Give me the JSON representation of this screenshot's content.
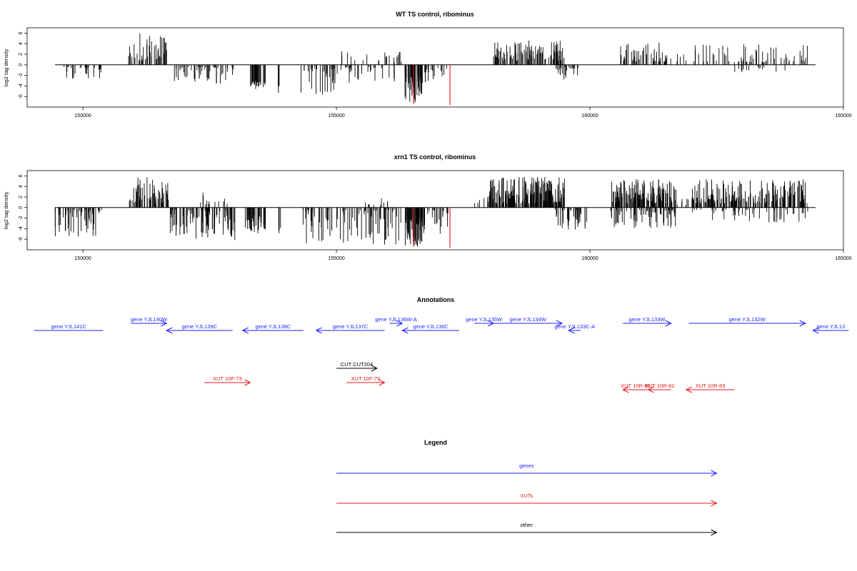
{
  "colors": {
    "axis": "#000000",
    "bar": "#000000",
    "highlight": "#e31a1c",
    "gene": "#1f1fff",
    "xut": "#e31a1c",
    "other": "#000000"
  },
  "chart_data": [
    {
      "type": "bar",
      "title": "WT TS control, ribominus",
      "xlabel": "",
      "ylabel": "log2 tag density",
      "xlim": [
        148900,
        165000
      ],
      "ylim": [
        -8,
        7
      ],
      "xticks": [
        150000,
        155000,
        160000,
        165000
      ],
      "yticks": [
        6,
        4,
        2,
        0,
        -2,
        -4,
        -6
      ],
      "baseline": [
        149450,
        164450
      ],
      "highlight": [
        {
          "x": 156520,
          "y": -7.4
        },
        {
          "x": 157240,
          "y": -7.6
        }
      ],
      "regions": [
        {
          "start": 149600,
          "end": 150400,
          "density": 0.5,
          "min": -2.6,
          "max": -0.4
        },
        {
          "start": 150900,
          "end": 151700,
          "density": 0.8,
          "min": 0.8,
          "max": 6.0
        },
        {
          "start": 151800,
          "end": 153000,
          "density": 0.6,
          "min": -3.6,
          "max": -0.4
        },
        {
          "start": 153300,
          "end": 153600,
          "density": 1.5,
          "min": -4.6,
          "max": -3.0
        },
        {
          "start": 153850,
          "end": 153900,
          "density": 1.0,
          "min": -5.4,
          "max": -3.6
        },
        {
          "start": 154300,
          "end": 155000,
          "density": 0.6,
          "min": -5.8,
          "max": -0.4
        },
        {
          "start": 155100,
          "end": 156300,
          "density": 0.25,
          "min": 0.5,
          "max": 2.6
        },
        {
          "start": 155000,
          "end": 156300,
          "density": 0.3,
          "min": -3.5,
          "max": -0.4
        },
        {
          "start": 156350,
          "end": 156700,
          "density": 2.0,
          "min": -7.2,
          "max": -2.0
        },
        {
          "start": 156700,
          "end": 157200,
          "density": 0.5,
          "min": -4.0,
          "max": -0.4
        },
        {
          "start": 158100,
          "end": 159500,
          "density": 1.0,
          "min": 0.8,
          "max": 4.6
        },
        {
          "start": 159300,
          "end": 159850,
          "density": 0.6,
          "min": -2.8,
          "max": -0.4
        },
        {
          "start": 160600,
          "end": 161500,
          "density": 0.8,
          "min": 0.6,
          "max": 4.2
        },
        {
          "start": 161500,
          "end": 162000,
          "density": 0.25,
          "min": 0.5,
          "max": 2.0
        },
        {
          "start": 162000,
          "end": 164300,
          "density": 0.4,
          "min": 0.5,
          "max": 4.0
        },
        {
          "start": 162200,
          "end": 164300,
          "density": 0.1,
          "min": -1.6,
          "max": -0.4
        }
      ]
    },
    {
      "type": "bar",
      "title": "xrn1 TS control, ribominus",
      "xlabel": "",
      "ylabel": "log2 tag density",
      "xlim": [
        148900,
        165000
      ],
      "ylim": [
        -8,
        7
      ],
      "xticks": [
        150000,
        155000,
        160000,
        165000
      ],
      "yticks": [
        6,
        4,
        2,
        0,
        -2,
        -4,
        -6
      ],
      "baseline": [
        149450,
        164450
      ],
      "highlight": [
        {
          "x": 156520,
          "y": -7.4
        },
        {
          "x": 157240,
          "y": -7.6
        }
      ],
      "regions": [
        {
          "start": 149450,
          "end": 150400,
          "density": 0.8,
          "min": -5.6,
          "max": -0.4
        },
        {
          "start": 150900,
          "end": 151700,
          "density": 1.0,
          "min": 0.8,
          "max": 5.8
        },
        {
          "start": 151700,
          "end": 153000,
          "density": 1.0,
          "min": -6.2,
          "max": -0.4
        },
        {
          "start": 152300,
          "end": 152900,
          "density": 0.3,
          "min": 0.5,
          "max": 3.0
        },
        {
          "start": 153200,
          "end": 153600,
          "density": 1.5,
          "min": -5.0,
          "max": -1.5
        },
        {
          "start": 153850,
          "end": 153900,
          "density": 1.0,
          "min": -6.8,
          "max": -3.6
        },
        {
          "start": 154300,
          "end": 156300,
          "density": 0.6,
          "min": -7.0,
          "max": -0.4
        },
        {
          "start": 155500,
          "end": 156200,
          "density": 0.2,
          "min": 0.5,
          "max": 2.0
        },
        {
          "start": 156350,
          "end": 156750,
          "density": 2.0,
          "min": -7.4,
          "max": -2.0
        },
        {
          "start": 156750,
          "end": 157200,
          "density": 0.6,
          "min": -5.0,
          "max": -0.4
        },
        {
          "start": 157600,
          "end": 158000,
          "density": 0.2,
          "min": 0.6,
          "max": 2.4
        },
        {
          "start": 158000,
          "end": 159500,
          "density": 2.0,
          "min": 0.8,
          "max": 5.8
        },
        {
          "start": 159300,
          "end": 159950,
          "density": 0.8,
          "min": -4.2,
          "max": -0.4
        },
        {
          "start": 160400,
          "end": 161700,
          "density": 1.6,
          "min": 0.8,
          "max": 5.4
        },
        {
          "start": 160400,
          "end": 161700,
          "density": 0.8,
          "min": -4.0,
          "max": -0.4
        },
        {
          "start": 161700,
          "end": 162000,
          "density": 0.3,
          "min": 0.5,
          "max": 2.5
        },
        {
          "start": 162000,
          "end": 164300,
          "density": 1.2,
          "min": 0.8,
          "max": 5.4
        },
        {
          "start": 162000,
          "end": 164300,
          "density": 0.3,
          "min": -3.0,
          "max": -0.4
        }
      ]
    }
  ],
  "annotations": {
    "title": "Annotations",
    "items": [
      {
        "label": "gene YJL141C",
        "start": 149040,
        "end": 150400,
        "dir": "none",
        "cat": "gene",
        "row": 1
      },
      {
        "label": "gene YJL140W",
        "start": 150950,
        "end": 151650,
        "dir": "right",
        "cat": "gene",
        "row": 0
      },
      {
        "label": "gene YJL139C",
        "start": 151650,
        "end": 152950,
        "dir": "left",
        "cat": "gene",
        "row": 1
      },
      {
        "label": "gene YJL138C",
        "start": 153150,
        "end": 154350,
        "dir": "left",
        "cat": "gene",
        "row": 1
      },
      {
        "label": "gene YJL137C",
        "start": 154600,
        "end": 155950,
        "dir": "left",
        "cat": "gene",
        "row": 1
      },
      {
        "label": "gene YJL136W-A",
        "start": 156050,
        "end": 156300,
        "dir": "right",
        "cat": "gene",
        "row": 0
      },
      {
        "label": "gene YJL136C",
        "start": 156300,
        "end": 157420,
        "dir": "left",
        "cat": "gene",
        "row": 1
      },
      {
        "label": "gene YJL135W",
        "start": 157720,
        "end": 158100,
        "dir": "right",
        "cat": "gene",
        "row": 0
      },
      {
        "label": "gene YJL134W",
        "start": 158100,
        "end": 159450,
        "dir": "right",
        "cat": "gene",
        "row": 0
      },
      {
        "label": "gene YJL133C-A",
        "start": 159580,
        "end": 159820,
        "dir": "left",
        "cat": "gene",
        "row": 1
      },
      {
        "label": "gene YJL133W",
        "start": 160650,
        "end": 161600,
        "dir": "right",
        "cat": "gene",
        "row": 0
      },
      {
        "label": "gene YJL132W",
        "start": 161950,
        "end": 164250,
        "dir": "right",
        "cat": "gene",
        "row": 0
      },
      {
        "label": "gene YJL13",
        "start": 164400,
        "end": 165100,
        "dir": "left",
        "cat": "gene",
        "row": 1
      },
      {
        "label": "CUT CUT204",
        "start": 155000,
        "end": 155800,
        "dir": "right",
        "cat": "other",
        "row": 2
      },
      {
        "label": "XUT 10F-73",
        "start": 152400,
        "end": 153300,
        "dir": "right",
        "cat": "xut",
        "row": 3
      },
      {
        "label": "XUT 10F-76",
        "start": 155200,
        "end": 155950,
        "dir": "right",
        "cat": "xut",
        "row": 3
      },
      {
        "label": "XUT 10R-80",
        "start": 160650,
        "end": 161150,
        "dir": "left",
        "cat": "xut",
        "row": 4
      },
      {
        "label": "XUT 10R-82",
        "start": 161150,
        "end": 161600,
        "dir": "left",
        "cat": "xut",
        "row": 4
      },
      {
        "label": "XUT 10R-83",
        "start": 161900,
        "end": 162850,
        "dir": "left",
        "cat": "xut",
        "row": 4
      }
    ]
  },
  "legend": {
    "title": "Legend",
    "items": [
      {
        "label": "genes",
        "cat": "gene"
      },
      {
        "label": "XUTs",
        "cat": "xut"
      },
      {
        "label": "other",
        "cat": "other"
      }
    ]
  }
}
